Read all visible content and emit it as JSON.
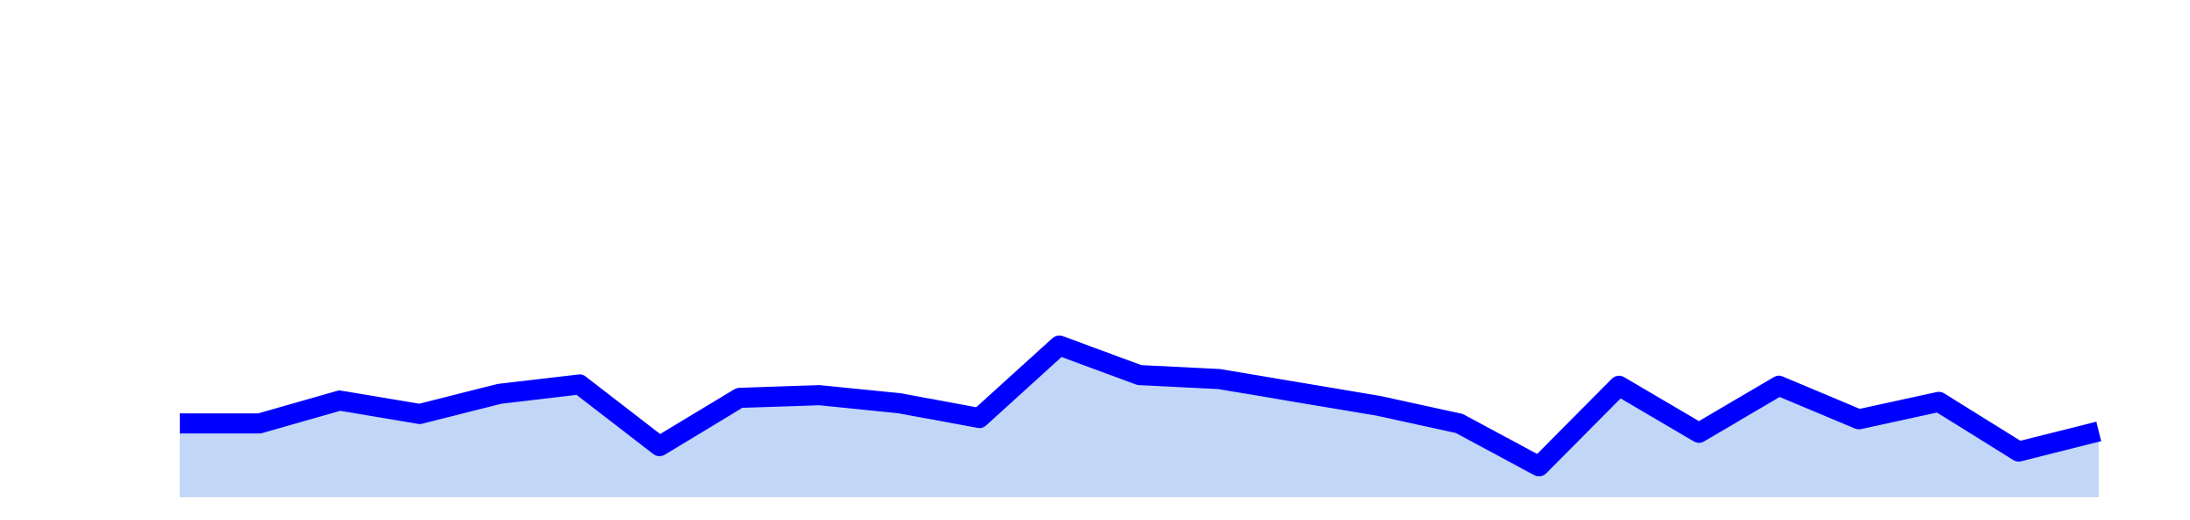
{
  "chart_data": {
    "type": "area",
    "title": "",
    "xlabel": "",
    "ylabel": "",
    "grid": false,
    "legend": "none",
    "x": [
      0,
      1,
      2,
      3,
      4,
      5,
      6,
      7,
      8,
      9,
      10,
      11,
      12,
      13,
      14,
      15,
      16,
      17,
      18,
      19,
      20,
      21,
      22,
      23,
      24
    ],
    "ylim": [
      0,
      35
    ],
    "series": [
      {
        "values": [
          5.5,
          5.5,
          7.2,
          6.2,
          7.7,
          8.4,
          3.8,
          7.4,
          7.6,
          7.0,
          5.9,
          11.3,
          9.1,
          8.8,
          7.8,
          6.8,
          5.5,
          2.3,
          8.3,
          4.8,
          8.3,
          5.8,
          7.1,
          3.4,
          4.9
        ],
        "line_color": "#0000ff",
        "fill_color": "#c2d6f7"
      }
    ]
  }
}
